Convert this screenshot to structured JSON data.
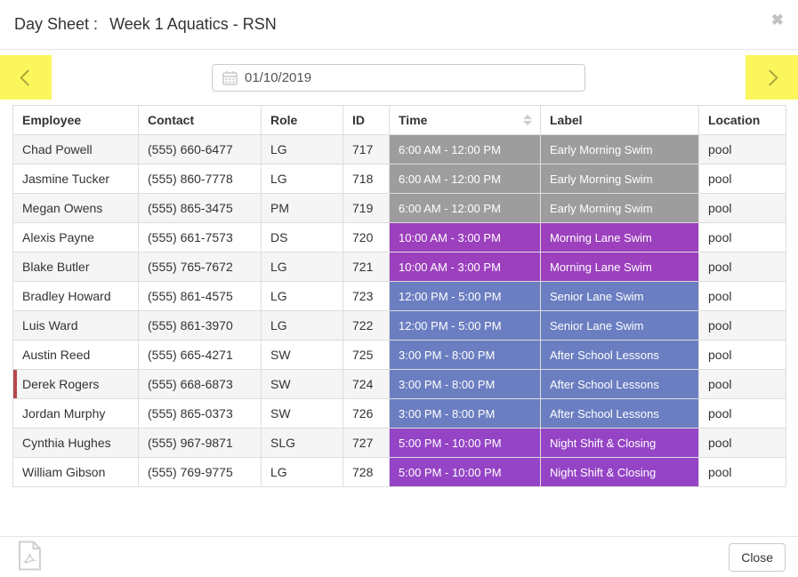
{
  "modal": {
    "title_prefix": "Day Sheet :",
    "title": "Week 1 Aquatics - RSN",
    "close_icon": "✖"
  },
  "nav": {
    "date_value": "01/10/2019",
    "highlight_color": "#fbf65b"
  },
  "table": {
    "columns": [
      "Employee",
      "Contact",
      "Role",
      "ID",
      "Time",
      "Label",
      "Location"
    ],
    "rows": [
      {
        "employee": "Chad Powell",
        "contact": "(555) 660-6477",
        "role": "LG",
        "id": "717",
        "time": "6:00 AM - 12:00 PM",
        "label": "Early Morning Swim",
        "location": "pool",
        "shift_color": "#9d9d9d",
        "flagged": false
      },
      {
        "employee": "Jasmine Tucker",
        "contact": "(555) 860-7778",
        "role": "LG",
        "id": "718",
        "time": "6:00 AM - 12:00 PM",
        "label": "Early Morning Swim",
        "location": "pool",
        "shift_color": "#9d9d9d",
        "flagged": false
      },
      {
        "employee": "Megan Owens",
        "contact": "(555) 865-3475",
        "role": "PM",
        "id": "719",
        "time": "6:00 AM - 12:00 PM",
        "label": "Early Morning Swim",
        "location": "pool",
        "shift_color": "#9d9d9d",
        "flagged": false
      },
      {
        "employee": "Alexis Payne",
        "contact": "(555) 661-7573",
        "role": "DS",
        "id": "720",
        "time": "10:00 AM - 3:00 PM",
        "label": "Morning Lane Swim",
        "location": "pool",
        "shift_color": "#9c40be",
        "flagged": false
      },
      {
        "employee": "Blake Butler",
        "contact": "(555) 765-7672",
        "role": "LG",
        "id": "721",
        "time": "10:00 AM - 3:00 PM",
        "label": "Morning Lane Swim",
        "location": "pool",
        "shift_color": "#9c40be",
        "flagged": false
      },
      {
        "employee": "Bradley Howard",
        "contact": "(555) 861-4575",
        "role": "LG",
        "id": "723",
        "time": "12:00 PM - 5:00 PM",
        "label": "Senior Lane Swim",
        "location": "pool",
        "shift_color": "#6b7ec1",
        "flagged": false
      },
      {
        "employee": "Luis Ward",
        "contact": "(555) 861-3970",
        "role": "LG",
        "id": "722",
        "time": "12:00 PM - 5:00 PM",
        "label": "Senior Lane Swim",
        "location": "pool",
        "shift_color": "#6b7ec1",
        "flagged": false
      },
      {
        "employee": "Austin Reed",
        "contact": "(555) 665-4271",
        "role": "SW",
        "id": "725",
        "time": "3:00 PM - 8:00 PM",
        "label": "After School Lessons",
        "location": "pool",
        "shift_color": "#6b7ec1",
        "flagged": false
      },
      {
        "employee": "Derek Rogers",
        "contact": "(555) 668-6873",
        "role": "SW",
        "id": "724",
        "time": "3:00 PM - 8:00 PM",
        "label": "After School Lessons",
        "location": "pool",
        "shift_color": "#6b7ec1",
        "flagged": true
      },
      {
        "employee": "Jordan Murphy",
        "contact": "(555) 865-0373",
        "role": "SW",
        "id": "726",
        "time": "3:00 PM - 8:00 PM",
        "label": "After School Lessons",
        "location": "pool",
        "shift_color": "#6b7ec1",
        "flagged": false
      },
      {
        "employee": "Cynthia Hughes",
        "contact": "(555) 967-9871",
        "role": "SLG",
        "id": "727",
        "time": "5:00 PM - 10:00 PM",
        "label": "Night Shift & Closing",
        "location": "pool",
        "shift_color": "#9544c6",
        "flagged": false
      },
      {
        "employee": "William Gibson",
        "contact": "(555) 769-9775",
        "role": "LG",
        "id": "728",
        "time": "5:00 PM - 10:00 PM",
        "label": "Night Shift & Closing",
        "location": "pool",
        "shift_color": "#9544c6",
        "flagged": false
      }
    ],
    "flag_color": "#b5494b"
  },
  "footer": {
    "close_label": "Close"
  }
}
